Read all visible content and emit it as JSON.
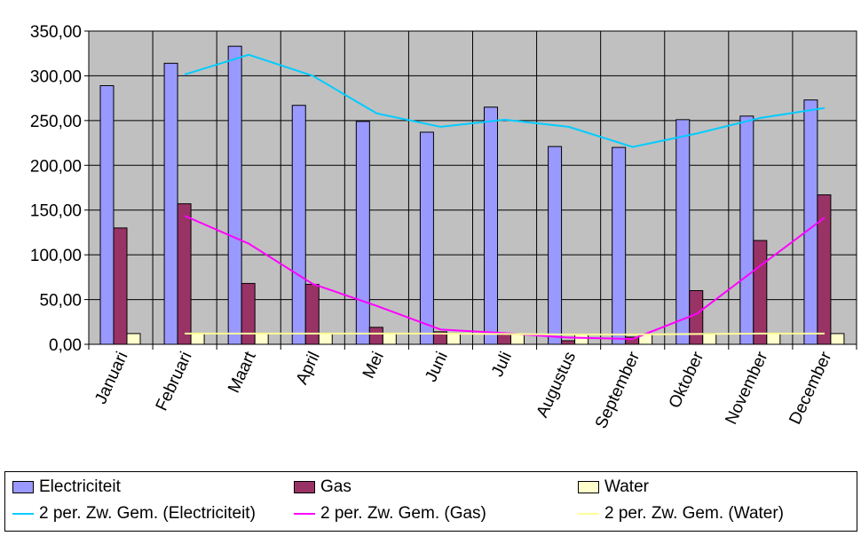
{
  "chart_data": {
    "type": "bar",
    "title": "",
    "xlabel": "",
    "ylabel": "",
    "ylim": [
      0,
      350
    ],
    "yticks": [
      "0,00",
      "50,00",
      "100,00",
      "150,00",
      "200,00",
      "250,00",
      "300,00",
      "350,00"
    ],
    "grid": true,
    "legend_position": "bottom",
    "categories": [
      "Januari",
      "Februari",
      "Maart",
      "April",
      "Mei",
      "Juni",
      "Juli",
      "Augustus",
      "September",
      "Oktober",
      "November",
      "December"
    ],
    "series": [
      {
        "name": "Electriciteit",
        "kind": "bar",
        "color": "#9999FF",
        "values": [
          289,
          314,
          333,
          267,
          249,
          237,
          265,
          221,
          220,
          251,
          255,
          273
        ]
      },
      {
        "name": "Gas",
        "kind": "bar",
        "color": "#993366",
        "values": [
          130,
          157,
          68,
          67,
          19,
          14,
          11,
          4,
          8,
          60,
          116,
          167
        ]
      },
      {
        "name": "Water",
        "kind": "bar",
        "color": "#FFFFCC",
        "values": [
          12,
          12,
          12,
          12,
          12,
          12,
          11,
          11,
          11,
          12,
          12,
          12
        ]
      },
      {
        "name": "2 per. Zw. Gem. (Electriciteit)",
        "kind": "line",
        "color": "#00CCFF",
        "values": [
          null,
          301.5,
          323.5,
          300,
          258,
          243,
          251,
          243,
          220.5,
          235.5,
          253,
          264
        ]
      },
      {
        "name": "2 per. Zw. Gem. (Gas)",
        "kind": "line",
        "color": "#FF00FF",
        "values": [
          null,
          143.5,
          112.5,
          67.5,
          43,
          16.5,
          12.5,
          7.5,
          6,
          34,
          88,
          141.5
        ]
      },
      {
        "name": "2 per. Zw. Gem. (Water)",
        "kind": "line",
        "color": "#FFFF99",
        "values": [
          null,
          12,
          12,
          12,
          12,
          12,
          11.5,
          11,
          11,
          11.5,
          12,
          12
        ]
      }
    ]
  }
}
